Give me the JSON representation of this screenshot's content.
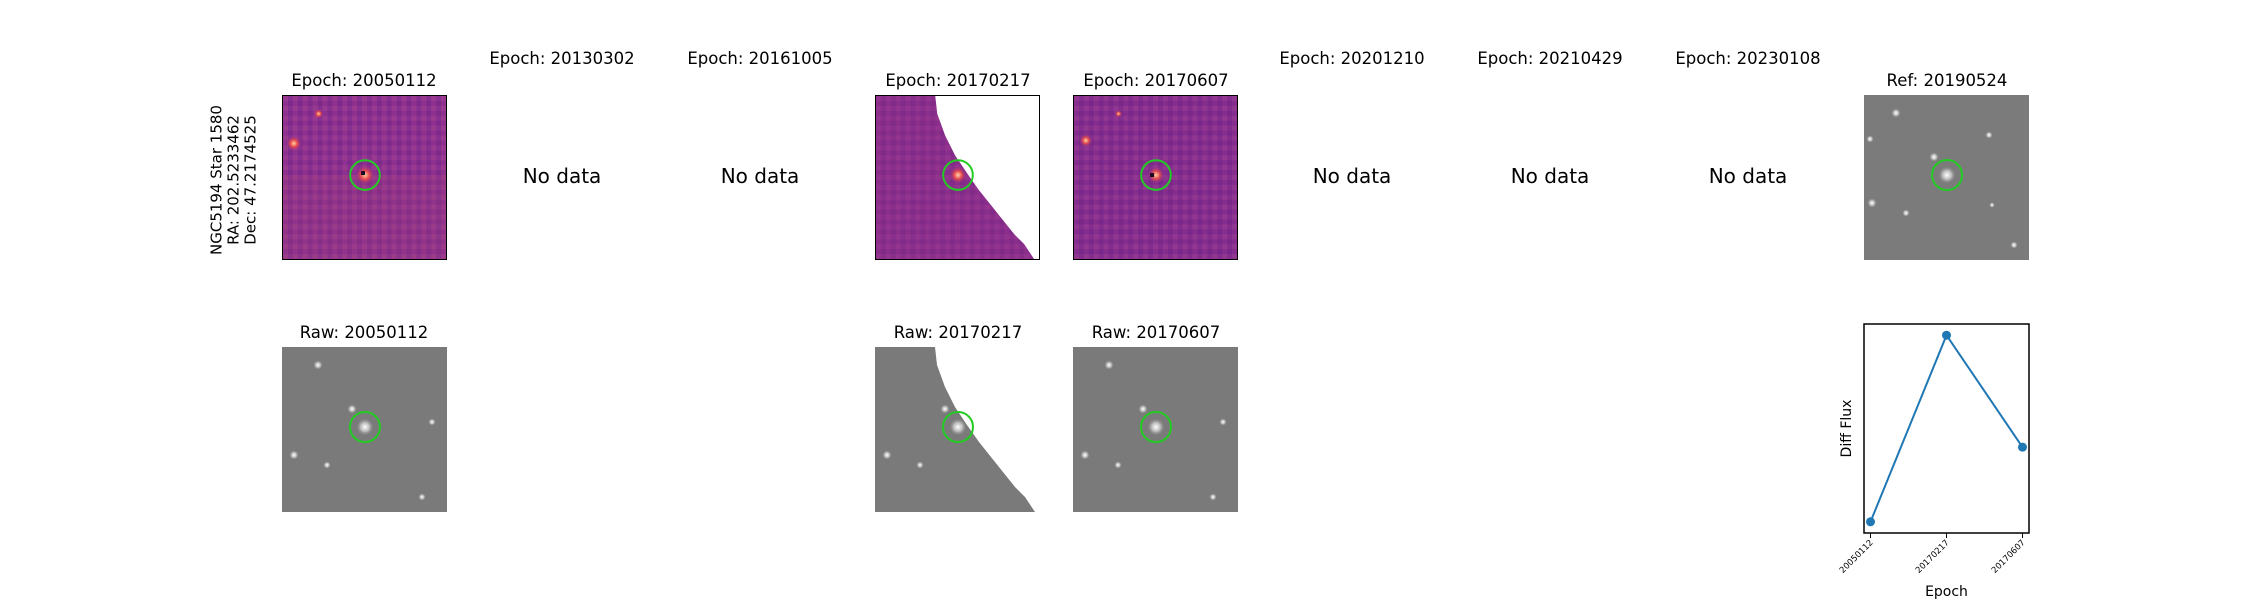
{
  "row_label": {
    "line1": "NGC5194 Star 1580",
    "line2": "RA: 202.5233462",
    "line3": "Dec: 47.2174525"
  },
  "diff_titles": [
    "Epoch: 20050112",
    "Epoch: 20130302",
    "Epoch: 20161005",
    "Epoch: 20170217",
    "Epoch: 20170607",
    "Epoch: 20201210",
    "Epoch: 20210429",
    "Epoch: 20230108"
  ],
  "ref_title": "Ref: 20190524",
  "no_data_label": "No data",
  "raw_titles": [
    "Raw: 20050112",
    "Raw: 20170217",
    "Raw: 20170607"
  ],
  "colors": {
    "diff_bg": "#8b2f8e",
    "raw_bg": "#7a7a7a",
    "marker_circle": "#22cc22",
    "line": "#1f77b4"
  },
  "chart_data": {
    "type": "line",
    "x": [
      "20050112",
      "20170217",
      "20170607"
    ],
    "series": [
      {
        "values": [
          0.0,
          1.0,
          0.4
        ]
      }
    ],
    "xlabel": "Epoch",
    "ylabel": "Diff Flux",
    "yticks_shown": false,
    "grid": false
  }
}
